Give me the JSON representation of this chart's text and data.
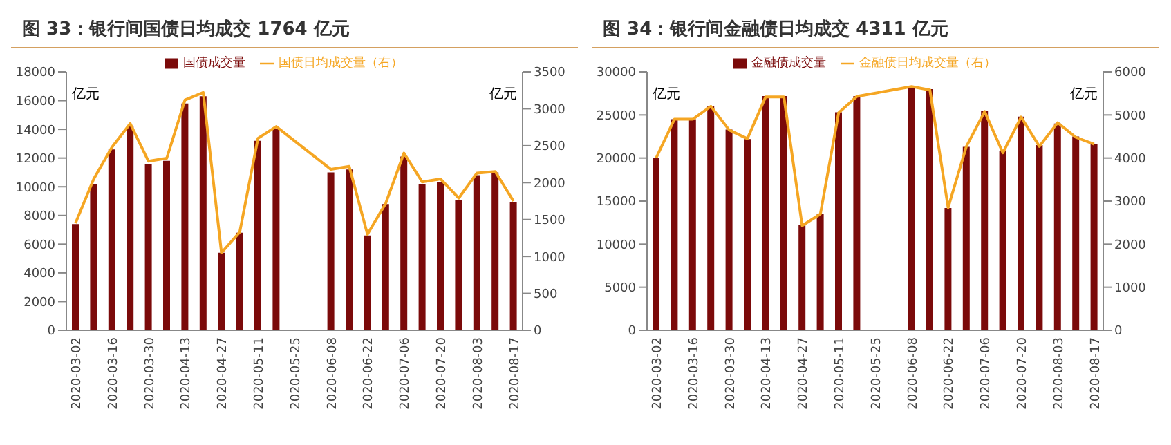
{
  "chart_data": [
    {
      "type": "bar",
      "title": "图 33：银行间国债日均成交 1764 亿元",
      "categories": [
        "2020-03-02",
        null,
        "2020-03-16",
        null,
        "2020-03-30",
        null,
        "2020-04-13",
        null,
        "2020-04-27",
        null,
        "2020-05-11",
        null,
        "2020-05-25",
        null,
        "2020-06-08",
        null,
        "2020-06-22",
        null,
        "2020-07-06",
        null,
        "2020-07-20",
        null,
        "2020-08-03",
        null,
        "2020-08-17"
      ],
      "series": [
        {
          "name": "国债成交量",
          "color": "#7b0a0a",
          "values": [
            7400,
            10200,
            12600,
            14200,
            11600,
            11800,
            15800,
            16300,
            5400,
            6800,
            13200,
            14000,
            null,
            null,
            11000,
            11200,
            6600,
            8800,
            12100,
            10200,
            10300,
            9100,
            10800,
            11000,
            8900
          ]
        },
        {
          "name": "国债日均成交量（右）",
          "type": "line",
          "axis": "y2",
          "color": "#f5a623",
          "values": [
            1450,
            2050,
            2480,
            2800,
            2290,
            2330,
            3120,
            3220,
            1050,
            1330,
            2600,
            2760,
            null,
            null,
            2180,
            2220,
            1300,
            1720,
            2400,
            2010,
            2050,
            1790,
            2130,
            2150,
            1750
          ]
        }
      ],
      "ylim": [
        0,
        18000
      ],
      "yticks": [
        0,
        2000,
        4000,
        6000,
        8000,
        10000,
        12000,
        14000,
        16000,
        18000
      ],
      "y2lim": [
        0,
        3500
      ],
      "y2ticks": [
        0,
        500,
        1000,
        1500,
        2000,
        2500,
        3000,
        3500
      ],
      "ylabel": "亿元",
      "y2label": "亿元",
      "legend": "top"
    },
    {
      "type": "bar",
      "title": "图 34：银行间金融债日均成交 4311 亿元",
      "categories": [
        "2020-03-02",
        null,
        "2020-03-16",
        null,
        "2020-03-30",
        null,
        "2020-04-13",
        null,
        "2020-04-27",
        null,
        "2020-05-11",
        null,
        "2020-05-25",
        null,
        "2020-06-08",
        null,
        "2020-06-22",
        null,
        "2020-07-06",
        null,
        "2020-07-20",
        null,
        "2020-08-03",
        null,
        "2020-08-17"
      ],
      "series": [
        {
          "name": "金融债成交量",
          "color": "#7b0a0a",
          "values": [
            20000,
            24500,
            24500,
            26000,
            23300,
            22200,
            27200,
            27200,
            12200,
            13500,
            25300,
            27200,
            null,
            null,
            28300,
            28000,
            14200,
            21300,
            25500,
            20800,
            24800,
            21500,
            24000,
            22500,
            21600
          ]
        },
        {
          "name": "金融债日均成交量（右）",
          "type": "line",
          "axis": "y2",
          "color": "#f5a623",
          "values": [
            4000,
            4900,
            4900,
            5200,
            4650,
            4450,
            5420,
            5420,
            2430,
            2700,
            5050,
            5430,
            null,
            null,
            5660,
            5580,
            2850,
            4270,
            5080,
            4120,
            4950,
            4270,
            4820,
            4480,
            4320
          ]
        }
      ],
      "ylim": [
        0,
        30000
      ],
      "yticks": [
        0,
        5000,
        10000,
        15000,
        20000,
        25000,
        30000
      ],
      "y2lim": [
        0,
        6000
      ],
      "y2ticks": [
        0,
        1000,
        2000,
        3000,
        4000,
        5000,
        6000
      ],
      "ylabel": "亿元",
      "y2label": "亿元",
      "legend": "top"
    }
  ]
}
